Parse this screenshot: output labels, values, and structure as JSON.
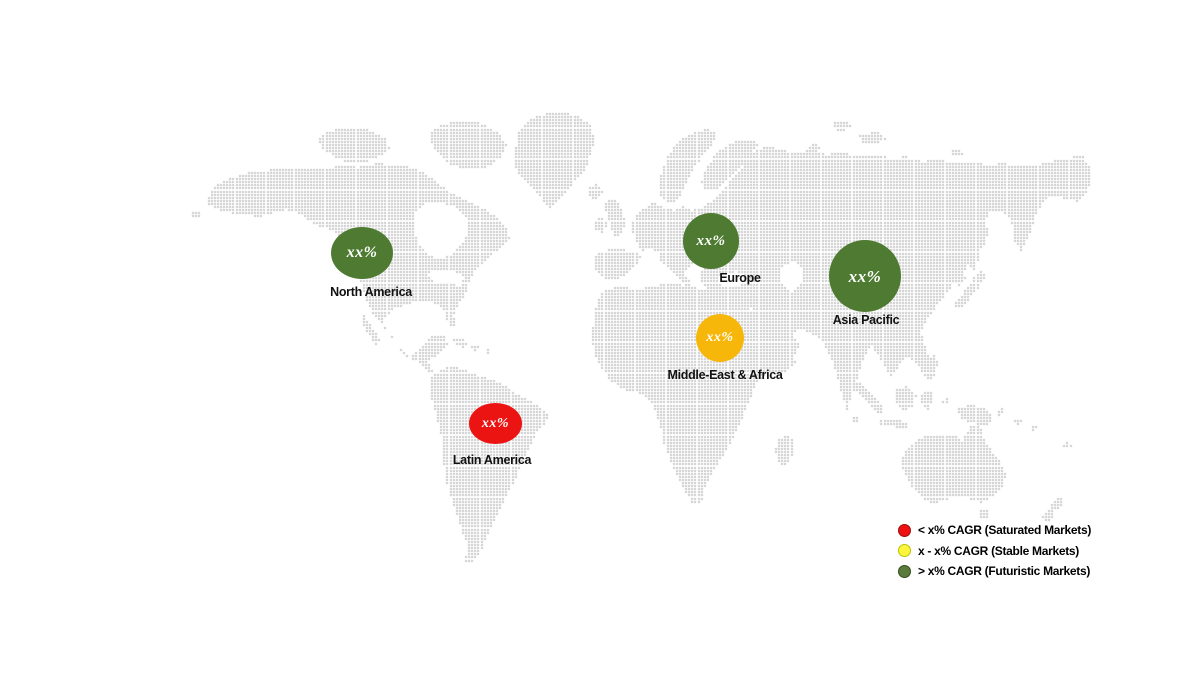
{
  "map": {
    "dot_color": "#c9c9c9",
    "background": "#ffffff"
  },
  "regions": [
    {
      "id": "north-america",
      "label": "North America",
      "value": "xx%",
      "color": "#4e7b31"
    },
    {
      "id": "europe",
      "label": "Europe",
      "value": "xx%",
      "color": "#4e7b31"
    },
    {
      "id": "asia-pacific",
      "label": "Asia Pacific",
      "value": "xx%",
      "color": "#4e7b31"
    },
    {
      "id": "middle-east-africa",
      "label": "Middle-East & Africa",
      "value": "xx%",
      "color": "#f7b70a"
    },
    {
      "id": "latin-america",
      "label": "Latin America",
      "value": "xx%",
      "color": "#ec1412"
    }
  ],
  "legend": {
    "items": [
      {
        "label": "< x% CAGR (Saturated Markets)",
        "color": "#ee1111",
        "border": "#9d0f0f"
      },
      {
        "label": "x - x% CAGR (Stable Markets)",
        "color": "#fdf53b",
        "border": "#b9c400"
      },
      {
        "label": "> x% CAGR (Futuristic Markets)",
        "color": "#5b7b3c",
        "border": "#324d1d"
      }
    ]
  }
}
